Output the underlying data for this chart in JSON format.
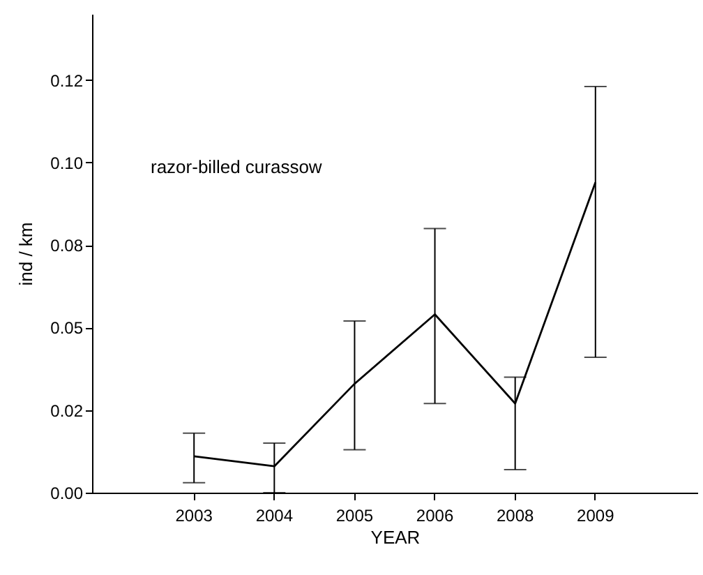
{
  "chart_data": {
    "type": "line",
    "xlabel": "YEAR",
    "ylabel": "ind / km",
    "categories": [
      "2003",
      "2004",
      "2005",
      "2006",
      "2008",
      "2009"
    ],
    "values": [
      0.011,
      0.008,
      0.033,
      0.054,
      0.027,
      0.094
    ],
    "errors": [
      [
        0.003,
        0.018
      ],
      [
        0.0,
        0.015
      ],
      [
        0.013,
        0.052
      ],
      [
        0.027,
        0.08
      ],
      [
        0.007,
        0.035
      ],
      [
        0.041,
        0.123
      ]
    ],
    "color": "#000000",
    "marker": "none",
    "line_style": "solid",
    "grid": false,
    "ylim": [
      0,
      0.145
    ],
    "yticks": [
      {
        "value": 0,
        "label": "0.00"
      },
      {
        "value": 0.025,
        "label": "0.02"
      },
      {
        "value": 0.05,
        "label": "0.05"
      },
      {
        "value": 0.075,
        "label": "0.08"
      },
      {
        "value": 0.1,
        "label": "0.10"
      },
      {
        "value": 0.125,
        "label": "0.12"
      }
    ],
    "annotations": [
      "razor-billed curassow"
    ]
  }
}
